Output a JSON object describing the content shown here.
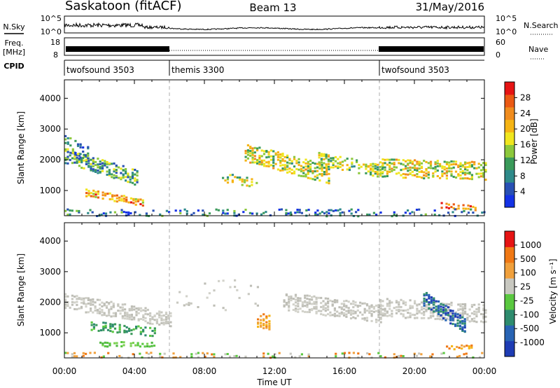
{
  "header": {
    "station": "Saskatoon (fitACF)",
    "beam": "Beam 13",
    "date": "31/May/2016"
  },
  "strips": {
    "nsky": {
      "label": "N.Sky",
      "left_ticks": [
        "10^5",
        "10^0"
      ],
      "right_ticks": [
        "10^5",
        "10^0"
      ],
      "right_label": "N.Search"
    },
    "freq": {
      "label_1": "Freq.",
      "label_2": "[MHz]",
      "left_ticks": [
        "18",
        "8"
      ],
      "right_ticks": [
        "60",
        "0"
      ],
      "right_label": "Nave"
    },
    "cpid": {
      "label": "CPID",
      "segments": [
        {
          "name": "twofsound 3503",
          "start": 0,
          "end": 6
        },
        {
          "name": "themis 3300",
          "start": 6,
          "end": 18
        },
        {
          "name": "twofsound 3503",
          "start": 18,
          "end": 24
        }
      ]
    }
  },
  "chart_data": [
    {
      "type": "heatmap",
      "panel": "power",
      "ylabel": "Slant Range [km]",
      "ylim": [
        180,
        4600
      ],
      "yticks": [
        1000,
        2000,
        3000,
        4000
      ],
      "xlim": [
        0,
        24
      ],
      "colorbar": {
        "label": "Power [dB]",
        "ticks": [
          "4",
          "8",
          "12",
          "16",
          "20",
          "24",
          "28"
        ],
        "colors": [
          "#1432e6",
          "#2850b4",
          "#2e8a8a",
          "#3a9a5a",
          "#8cc83c",
          "#f0e61e",
          "#f5b414",
          "#f08c1e",
          "#eb5a14",
          "#e61414"
        ]
      },
      "scatter_regions": [
        {
          "t0": 0.0,
          "t1": 4.0,
          "r_start": 2200,
          "r_end": 1500,
          "width": 500,
          "density": 0.7,
          "level": 0.35
        },
        {
          "t0": 1.2,
          "t1": 4.3,
          "r_start": 1000,
          "r_end": 700,
          "width": 250,
          "density": 0.8,
          "level": 0.7
        },
        {
          "t0": 0.0,
          "t1": 1.2,
          "r_start": 2600,
          "r_end": 2300,
          "width": 500,
          "density": 0.5,
          "level": 0.3
        },
        {
          "t0": 10.3,
          "t1": 15.0,
          "r_start": 2300,
          "r_end": 1600,
          "width": 600,
          "density": 0.65,
          "level": 0.5
        },
        {
          "t0": 14.5,
          "t1": 18.0,
          "r_start": 2100,
          "r_end": 1700,
          "width": 450,
          "density": 0.6,
          "level": 0.5
        },
        {
          "t0": 18.0,
          "t1": 24.0,
          "r_start": 1800,
          "r_end": 1700,
          "width": 600,
          "density": 0.6,
          "level": 0.55
        },
        {
          "t0": 9.0,
          "t1": 10.8,
          "r_start": 1500,
          "r_end": 1300,
          "width": 300,
          "density": 0.5,
          "level": 0.45
        },
        {
          "t0": 21.5,
          "t1": 23.3,
          "r_start": 600,
          "r_end": 500,
          "width": 200,
          "density": 0.7,
          "level": 0.8
        },
        {
          "t0": 0.0,
          "t1": 24.0,
          "r_start": 350,
          "r_end": 350,
          "width": 250,
          "density": 0.3,
          "level": 0.25
        }
      ]
    },
    {
      "type": "heatmap",
      "panel": "velocity",
      "ylabel": "Slant Range [km]",
      "xlabel": "Time UT",
      "ylim": [
        180,
        4600
      ],
      "yticks": [
        1000,
        2000,
        3000,
        4000
      ],
      "xlim": [
        0,
        24
      ],
      "xticks": [
        "00:00",
        "04:00",
        "08:00",
        "12:00",
        "16:00",
        "20:00",
        "00:00"
      ],
      "colorbar": {
        "label": "Velocity [m s⁻¹]",
        "ticks": [
          "1000",
          "500",
          "100",
          "25",
          "-25",
          "-100",
          "-500",
          "-1000"
        ],
        "colors": [
          "#1e3cb4",
          "#2864b4",
          "#2e8c6e",
          "#5ac840",
          "#c8c8c0",
          "#f0a03c",
          "#f07814",
          "#e61414"
        ]
      },
      "scatter_regions": [
        {
          "t0": 0.0,
          "t1": 6.0,
          "r_start": 2100,
          "r_end": 1500,
          "width": 500,
          "density": 0.6,
          "level": "gray"
        },
        {
          "t0": 1.5,
          "t1": 5.0,
          "r_start": 1300,
          "r_end": 1100,
          "width": 300,
          "density": 0.6,
          "level": "green"
        },
        {
          "t0": 2.0,
          "t1": 5.0,
          "r_start": 700,
          "r_end": 700,
          "width": 200,
          "density": 0.6,
          "level": "lightgreen"
        },
        {
          "t0": 11.0,
          "t1": 11.6,
          "r_start": 1500,
          "r_end": 1400,
          "width": 500,
          "density": 0.8,
          "level": "orange"
        },
        {
          "t0": 12.5,
          "t1": 18.0,
          "r_start": 2100,
          "r_end": 1700,
          "width": 600,
          "density": 0.6,
          "level": "gray"
        },
        {
          "t0": 18.0,
          "t1": 24.0,
          "r_start": 1900,
          "r_end": 1700,
          "width": 600,
          "density": 0.55,
          "level": "gray"
        },
        {
          "t0": 20.5,
          "t1": 22.8,
          "r_start": 2200,
          "r_end": 1300,
          "width": 500,
          "density": 0.75,
          "level": "blue"
        },
        {
          "t0": 21.8,
          "t1": 23.2,
          "r_start": 600,
          "r_end": 600,
          "width": 150,
          "density": 0.8,
          "level": "orange"
        },
        {
          "t0": 6.0,
          "t1": 11.0,
          "r_start": 2300,
          "r_end": 2300,
          "width": 1000,
          "density": 0.05,
          "level": "gray"
        },
        {
          "t0": 0.0,
          "t1": 24.0,
          "r_start": 350,
          "r_end": 350,
          "width": 200,
          "density": 0.25,
          "level": "mix"
        }
      ]
    }
  ]
}
